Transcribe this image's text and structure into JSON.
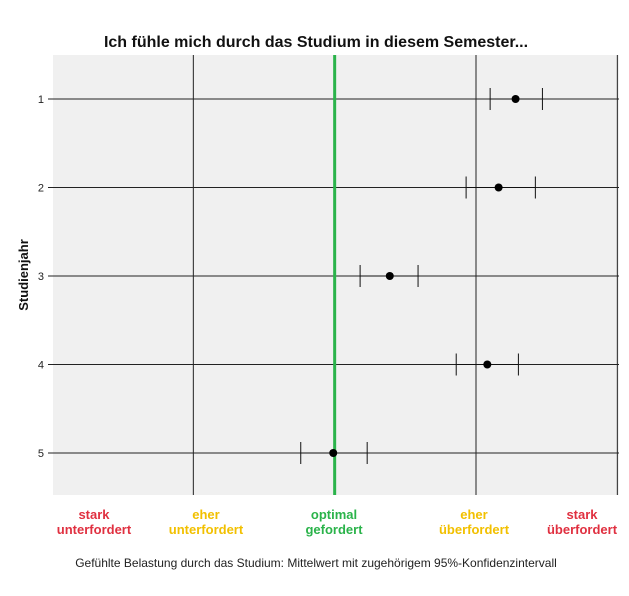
{
  "chart_data": {
    "type": "scatter",
    "title": "Ich fühle mich durch das Studium in diesem Semester...",
    "ylabel": "Studienjahr",
    "xlabel": "Gefühlte Belastung durch das Studium: Mittelwert mit zugehörigem 95%-Konfidenzintervall",
    "xlim": [
      1,
      5
    ],
    "x_reference_line": 3,
    "categories": [
      "1",
      "2",
      "3",
      "4",
      "5"
    ],
    "means": [
      4.28,
      4.16,
      3.39,
      4.08,
      2.99
    ],
    "ci_lower": [
      4.1,
      3.93,
      3.18,
      3.86,
      2.76
    ],
    "ci_upper": [
      4.47,
      4.42,
      3.59,
      4.3,
      3.23
    ],
    "x_category_labels": [
      {
        "line1": "stark",
        "line2": "unterfordert",
        "color": "#e03040"
      },
      {
        "line1": "eher",
        "line2": "unterfordert",
        "color": "#f2c000"
      },
      {
        "line1": "optimal",
        "line2": "gefordert",
        "color": "#2ab34a"
      },
      {
        "line1": "eher",
        "line2": "überfordert",
        "color": "#f2c000"
      },
      {
        "line1": "stark",
        "line2": "überfordert",
        "color": "#e03040"
      }
    ],
    "grid": true,
    "colors": {
      "plot_bg": "#f0f0f0",
      "reference_line": "#2ab34a",
      "points": "#000000"
    }
  }
}
